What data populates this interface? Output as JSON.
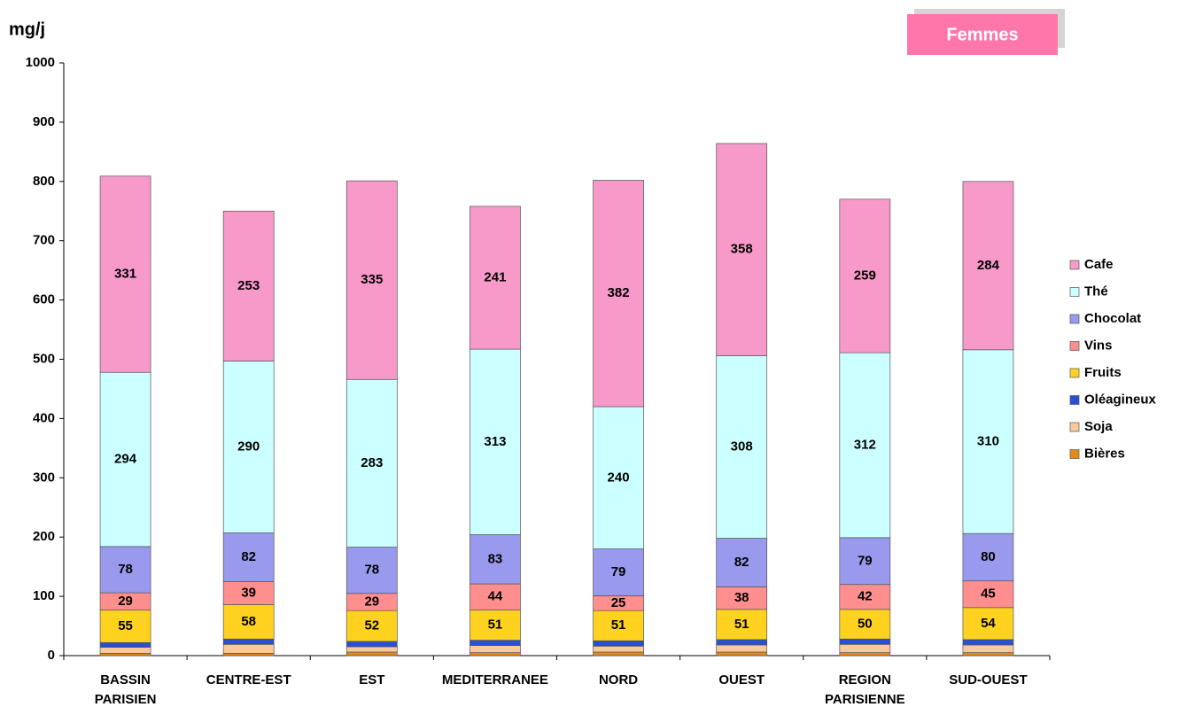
{
  "chart_data": {
    "type": "stacked_bar",
    "badge": "Femmes",
    "y_label": "mg/j",
    "categories": [
      "BASSIN PARISIEN",
      "CENTRE-EST",
      "EST",
      "MEDITERRANEE",
      "NORD",
      "OUEST",
      "REGION PARISIENNE",
      "SUD-OUEST"
    ],
    "series": [
      {
        "name": "Bières",
        "color": "#e48a1a",
        "values": [
          4,
          4,
          6,
          5,
          6,
          6,
          5,
          5
        ]
      },
      {
        "name": "Soja",
        "color": "#f9c99b",
        "values": [
          10,
          15,
          9,
          12,
          10,
          12,
          14,
          13
        ]
      },
      {
        "name": "Oléagineux",
        "color": "#2a4fd6",
        "values": [
          8,
          9,
          9,
          9,
          9,
          9,
          9,
          9
        ]
      },
      {
        "name": "Fruits",
        "color": "#ffd21f",
        "values": [
          55,
          58,
          52,
          51,
          51,
          51,
          50,
          54
        ]
      },
      {
        "name": "Vins",
        "color": "#ff8f8f",
        "values": [
          29,
          39,
          29,
          44,
          25,
          38,
          42,
          45
        ]
      },
      {
        "name": "Chocolat",
        "color": "#9999ee",
        "values": [
          78,
          82,
          78,
          83,
          79,
          82,
          79,
          80
        ]
      },
      {
        "name": "Thé",
        "color": "#ccffff",
        "values": [
          294,
          290,
          283,
          313,
          240,
          308,
          312,
          310
        ]
      },
      {
        "name": "Cafe",
        "color": "#f79ac9",
        "values": [
          331,
          253,
          335,
          241,
          382,
          358,
          259,
          284
        ]
      }
    ],
    "ylim": [
      0,
      1000
    ],
    "yticks": [
      0,
      100,
      200,
      300,
      400,
      500,
      600,
      700,
      800,
      900,
      1000
    ],
    "legend": "right"
  }
}
